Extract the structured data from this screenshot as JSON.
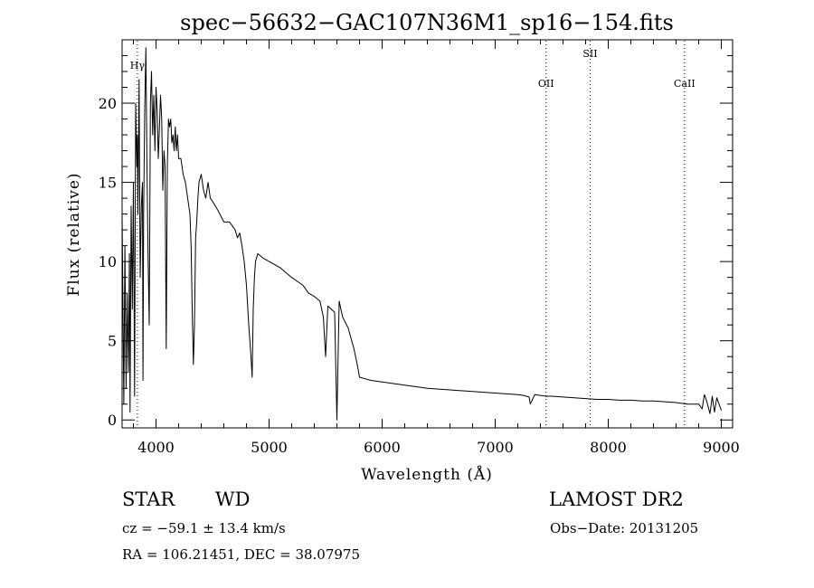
{
  "chart_data": {
    "type": "line",
    "title": "spec−56632−GAC107N36M1_sp16−154.fits",
    "xlabel": "Wavelength (Å)",
    "ylabel": "Flux (relative)",
    "xlim": [
      3700,
      9100
    ],
    "ylim": [
      -0.5,
      24
    ],
    "xticks": [
      4000,
      5000,
      6000,
      7000,
      8000,
      9000
    ],
    "yticks": [
      0,
      5,
      10,
      15,
      20
    ],
    "line_color": "#000000",
    "lines": [
      {
        "name": "Hγ",
        "x": 3835
      },
      {
        "name": "OII",
        "x": 7450
      },
      {
        "name": "SII",
        "x": 7840
      },
      {
        "name": "CaII",
        "x": 8675
      }
    ],
    "series": [
      {
        "x": [
          3700,
          3715,
          3725,
          3735,
          3745,
          3755,
          3765,
          3770,
          3780,
          3790,
          3800,
          3810,
          3820,
          3830,
          3835,
          3840,
          3850,
          3860,
          3870,
          3880,
          3885,
          3890,
          3900,
          3910,
          3920,
          3930,
          3940,
          3950,
          3960,
          3970,
          3980,
          3990,
          4000,
          4010,
          4020,
          4030,
          4040,
          4050,
          4060,
          4070,
          4080,
          4090,
          4100,
          4110,
          4120,
          4130,
          4140,
          4150,
          4160,
          4170,
          4180,
          4190,
          4200,
          4220,
          4240,
          4260,
          4280,
          4300,
          4310,
          4320,
          4330,
          4340,
          4350,
          4360,
          4370,
          4380,
          4400,
          4420,
          4440,
          4460,
          4480,
          4500,
          4550,
          4600,
          4650,
          4700,
          4720,
          4740,
          4760,
          4780,
          4800,
          4820,
          4840,
          4850,
          4860,
          4870,
          4880,
          4900,
          4950,
          5000,
          5100,
          5200,
          5300,
          5350,
          5400,
          5450,
          5480,
          5500,
          5520,
          5550,
          5580,
          5600,
          5620,
          5650,
          5700,
          5750,
          5780,
          5800,
          5850,
          5900,
          6000,
          6100,
          6200,
          6300,
          6400,
          6500,
          6600,
          6700,
          6800,
          6900,
          7000,
          7100,
          7200,
          7250,
          7300,
          7310,
          7350,
          7400,
          7450,
          7500,
          7600,
          7700,
          7800,
          7900,
          8000,
          8100,
          8200,
          8300,
          8400,
          8500,
          8600,
          8650,
          8700,
          8750,
          8800,
          8830,
          8850,
          8870,
          8900,
          8920,
          8940,
          8960,
          9000
        ],
        "y": [
          13.0,
          1.0,
          11.0,
          2.0,
          8.0,
          3.0,
          10.5,
          0.5,
          13.5,
          7.0,
          15.0,
          1.5,
          20.0,
          16.0,
          18.0,
          13.0,
          21.5,
          9.0,
          13.5,
          15.0,
          2.5,
          13.0,
          19.5,
          23.5,
          16.0,
          10.0,
          6.0,
          20.0,
          22.0,
          18.0,
          20.5,
          17.0,
          21.0,
          19.5,
          16.5,
          18.5,
          20.5,
          19.0,
          14.5,
          17.0,
          16.0,
          4.5,
          16.0,
          19.0,
          18.5,
          19.0,
          17.5,
          18.0,
          17.0,
          18.5,
          17.0,
          18.0,
          16.5,
          16.5,
          15.5,
          15.0,
          14.0,
          13.0,
          11.0,
          7.0,
          3.5,
          6.0,
          11.5,
          12.5,
          14.0,
          15.0,
          15.5,
          14.5,
          14.0,
          15.0,
          14.0,
          13.8,
          13.2,
          12.5,
          12.5,
          12.0,
          11.5,
          11.8,
          11.0,
          10.0,
          8.5,
          6.0,
          4.0,
          2.7,
          7.0,
          9.0,
          10.0,
          10.5,
          10.2,
          10.0,
          9.6,
          9.0,
          8.5,
          8.0,
          7.8,
          7.5,
          6.5,
          4.0,
          7.2,
          7.0,
          6.8,
          0.0,
          7.5,
          6.5,
          5.8,
          4.5,
          3.5,
          2.7,
          2.6,
          2.5,
          2.4,
          2.3,
          2.2,
          2.1,
          2.0,
          1.95,
          1.9,
          1.85,
          1.8,
          1.75,
          1.7,
          1.65,
          1.6,
          1.55,
          1.45,
          1.0,
          1.6,
          1.55,
          1.5,
          1.5,
          1.45,
          1.4,
          1.35,
          1.3,
          1.3,
          1.25,
          1.25,
          1.2,
          1.2,
          1.15,
          1.1,
          1.05,
          1.0,
          1.0,
          1.0,
          0.7,
          1.6,
          1.2,
          0.4,
          1.5,
          0.5,
          1.4,
          0.6
        ]
      }
    ]
  },
  "info": {
    "object_class": "STAR",
    "subclass": "WD",
    "survey": "LAMOST DR2",
    "redshift": "cz = −59.1 ± 13.4 km/s",
    "obs_date": "Obs−Date: 20131205",
    "coords": "RA = 106.21451, DEC =  38.07975"
  }
}
